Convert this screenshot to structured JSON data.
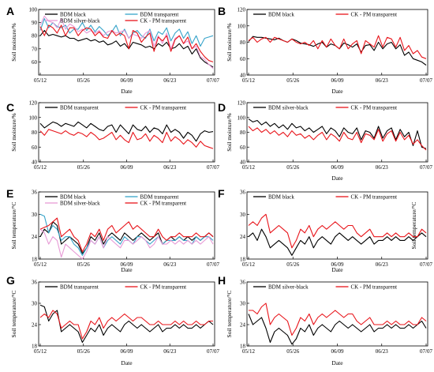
{
  "colors": {
    "bdm_black": "#000000",
    "ck_pm_transparent": "#e8141a",
    "bdm_transparent": "#36a3c9",
    "bdm_silver_black": "#e79ad6",
    "axis": "#000000"
  },
  "chart_data": [
    {
      "panel": "A",
      "type": "line",
      "xlabel": "Date",
      "ylabel": "Soil moisture/%",
      "ylim": [
        50,
        100
      ],
      "yticks": [
        60,
        70,
        80,
        90,
        100
      ],
      "xticks": [
        "05/12",
        "05/26",
        "06/09",
        "06/23",
        "07/07"
      ],
      "legend": "top",
      "ylabel_anchor": "left",
      "legend_cols": 2,
      "series": [
        {
          "name": "BDM black",
          "color": "#000000",
          "values": [
            80,
            84,
            80,
            81,
            80,
            79,
            80,
            78,
            78,
            76,
            77,
            78,
            76,
            77,
            75,
            76,
            73,
            74,
            76,
            72,
            74,
            70,
            75,
            74,
            73,
            71,
            72,
            70,
            74,
            72,
            75,
            70,
            71,
            74,
            70,
            72,
            66,
            70,
            63,
            60,
            58,
            56
          ]
        },
        {
          "name": "BDM transparent",
          "color": "#36a3c9",
          "values": [
            84,
            93,
            86,
            90,
            87,
            86,
            88,
            82,
            85,
            85,
            90,
            84,
            88,
            83,
            87,
            84,
            80,
            83,
            88,
            80,
            85,
            78,
            82,
            84,
            80,
            78,
            85,
            76,
            83,
            81,
            86,
            76,
            82,
            85,
            78,
            83,
            74,
            80,
            72,
            78,
            79,
            80
          ]
        },
        {
          "name": "BDM silver-black",
          "color": "#e79ad6",
          "values": [
            88,
            95,
            91,
            90,
            86,
            93,
            85,
            89,
            87,
            83,
            85,
            82,
            84,
            82,
            84,
            80,
            83,
            84,
            82,
            83,
            84,
            78,
            81,
            80,
            78,
            82,
            84,
            72,
            80,
            74,
            82,
            70,
            78,
            80,
            74,
            76,
            70,
            72,
            64,
            62,
            58,
            55
          ]
        },
        {
          "name": "CK - PM transparent",
          "color": "#e8141a",
          "values": [
            87,
            80,
            88,
            86,
            82,
            88,
            80,
            86,
            86,
            80,
            84,
            86,
            85,
            80,
            83,
            79,
            78,
            84,
            80,
            82,
            80,
            70,
            84,
            82,
            75,
            79,
            82,
            68,
            79,
            76,
            80,
            68,
            77,
            80,
            74,
            79,
            70,
            74,
            68,
            64,
            61,
            60
          ]
        }
      ]
    },
    {
      "panel": "B",
      "type": "line",
      "xlabel": "Date",
      "ylabel": "Soil moisture/%",
      "ylim": [
        40,
        120
      ],
      "yticks": [
        40,
        60,
        80,
        100,
        120
      ],
      "xticks": [
        "05/12",
        "05/26",
        "06/09",
        "06/23",
        "07/07"
      ],
      "legend": "top",
      "ylabel_anchor": "left",
      "legend_cols": 2,
      "series": [
        {
          "name": "BDM black",
          "color": "#000000",
          "values": [
            81,
            87,
            86,
            86,
            85,
            84,
            83,
            85,
            82,
            80,
            84,
            82,
            79,
            78,
            77,
            75,
            78,
            80,
            74,
            78,
            76,
            72,
            79,
            77,
            74,
            78,
            68,
            76,
            77,
            70,
            80,
            72,
            78,
            80,
            72,
            77,
            64,
            68,
            60,
            58,
            56,
            52
          ]
        },
        {
          "name": "CK - PM transparent",
          "color": "#e8141a",
          "values": [
            82,
            86,
            80,
            84,
            86,
            80,
            86,
            84,
            82,
            80,
            84,
            80,
            78,
            80,
            76,
            82,
            72,
            82,
            74,
            84,
            76,
            72,
            84,
            72,
            78,
            82,
            66,
            82,
            78,
            74,
            88,
            74,
            86,
            84,
            74,
            86,
            70,
            76,
            66,
            70,
            62,
            60
          ]
        }
      ]
    },
    {
      "panel": "C",
      "type": "line",
      "xlabel": "",
      "ylabel": "Soil moisture/%",
      "ylim": [
        40,
        120
      ],
      "yticks": [
        40,
        60,
        80,
        100,
        120
      ],
      "xticks": [
        "05/12",
        "05/26",
        "06/09",
        "06/23",
        "07/07"
      ],
      "legend": "top",
      "ylabel_anchor": "left",
      "legend_cols": 2,
      "series": [
        {
          "name": "BDM transparent",
          "color": "#000000",
          "values": [
            92,
            86,
            90,
            94,
            92,
            88,
            92,
            90,
            88,
            94,
            90,
            86,
            92,
            88,
            84,
            82,
            88,
            90,
            80,
            90,
            84,
            78,
            90,
            84,
            82,
            88,
            80,
            86,
            84,
            78,
            90,
            80,
            84,
            80,
            72,
            80,
            76,
            68,
            78,
            82,
            80,
            81
          ]
        },
        {
          "name": "CK - PM transparent",
          "color": "#e8141a",
          "values": [
            82,
            76,
            84,
            82,
            80,
            78,
            82,
            78,
            76,
            80,
            78,
            74,
            80,
            76,
            70,
            72,
            76,
            80,
            70,
            76,
            70,
            66,
            80,
            70,
            72,
            78,
            68,
            76,
            72,
            66,
            80,
            68,
            74,
            70,
            64,
            70,
            66,
            60,
            68,
            62,
            60,
            58
          ]
        }
      ]
    },
    {
      "panel": "D",
      "type": "line",
      "xlabel": "Date",
      "ylabel": "Soil moisture/%",
      "ylim": [
        40,
        120
      ],
      "yticks": [
        40,
        60,
        80,
        100,
        120
      ],
      "xticks": [
        "05/12",
        "05/26",
        "06/09",
        "06/23",
        "07/07"
      ],
      "legend": "top",
      "ylabel_anchor": "left",
      "legend_cols": 2,
      "series": [
        {
          "name": "BDM silver-black",
          "color": "#000000",
          "values": [
            98,
            94,
            96,
            90,
            94,
            88,
            92,
            86,
            90,
            84,
            92,
            86,
            88,
            82,
            86,
            80,
            84,
            88,
            78,
            86,
            82,
            74,
            86,
            80,
            78,
            86,
            70,
            82,
            80,
            72,
            88,
            72,
            82,
            86,
            70,
            84,
            74,
            80,
            62,
            82,
            60,
            58
          ]
        },
        {
          "name": "CK - PM transparent",
          "color": "#e8141a",
          "values": [
            88,
            82,
            86,
            80,
            84,
            78,
            82,
            76,
            80,
            74,
            82,
            76,
            78,
            72,
            76,
            70,
            76,
            80,
            70,
            78,
            74,
            68,
            80,
            72,
            70,
            80,
            66,
            78,
            76,
            70,
            84,
            68,
            78,
            82,
            68,
            80,
            70,
            76,
            64,
            70,
            62,
            56
          ]
        }
      ]
    },
    {
      "panel": "E",
      "type": "line",
      "xlabel": "Date",
      "ylabel": "Soil temperature/°C",
      "ylim": [
        18,
        36
      ],
      "yticks": [
        18,
        24,
        30,
        36
      ],
      "xticks": [
        "05/12",
        "05/26",
        "06/09",
        "06/23",
        "07/07"
      ],
      "legend": "top",
      "ylabel_anchor": "left",
      "legend_cols": 2,
      "series": [
        {
          "name": "BDM black",
          "color": "#000000",
          "values": [
            24,
            26,
            25,
            28,
            27,
            22,
            23,
            24,
            23,
            22,
            19.5,
            21,
            24,
            23,
            25,
            22,
            24,
            25,
            24,
            23,
            25,
            24,
            23,
            24,
            25,
            24,
            23,
            24,
            25,
            22,
            23,
            24,
            23,
            24,
            23,
            24,
            23,
            24,
            23,
            24,
            25,
            24
          ]
        },
        {
          "name": "BDM transparent",
          "color": "#36a3c9",
          "values": [
            30,
            29.5,
            25,
            27,
            26,
            23,
            24,
            24,
            22,
            21,
            19,
            21,
            23,
            22,
            24,
            21,
            23,
            24,
            23,
            22,
            24,
            23,
            22,
            24,
            24,
            23,
            22,
            23,
            24,
            22,
            23,
            23,
            23,
            24,
            23,
            23,
            22,
            24,
            23,
            24,
            24,
            23
          ]
        },
        {
          "name": "BDM silver-black",
          "color": "#e79ad6",
          "values": [
            26,
            25,
            22,
            24,
            23,
            18.5,
            22,
            21,
            20,
            19,
            18,
            20,
            23,
            22,
            24,
            21,
            24,
            23,
            22,
            21,
            23,
            23,
            22,
            23,
            24,
            23,
            21,
            22,
            24,
            22,
            22,
            23,
            22,
            23,
            22,
            23,
            22,
            23,
            22,
            23,
            24,
            22
          ]
        },
        {
          "name": "CK - PM transparent",
          "color": "#e8141a",
          "values": [
            26,
            26.5,
            27,
            28,
            29,
            24,
            25,
            26,
            24,
            23,
            20,
            22,
            25,
            24,
            26,
            23,
            26,
            27,
            25,
            26,
            27,
            28,
            26,
            27,
            26,
            25,
            24,
            24,
            26,
            24,
            23,
            24,
            24,
            25,
            24,
            24,
            24,
            25,
            24,
            24,
            25,
            24
          ]
        }
      ]
    },
    {
      "panel": "F",
      "type": "line",
      "xlabel": "Date",
      "ylabel": "Soil temperature/°C",
      "ylim": [
        18,
        36
      ],
      "yticks": [
        18,
        24,
        30,
        36
      ],
      "xticks": [
        "05/12",
        "05/26",
        "06/09",
        "06/23",
        "07/07"
      ],
      "legend": "top",
      "ylabel_anchor": "right",
      "legend_cols": 2,
      "series": [
        {
          "name": "BDM black",
          "color": "#000000",
          "values": [
            24,
            25,
            23,
            26,
            24,
            21,
            22,
            23,
            22,
            21,
            19,
            21,
            23,
            22,
            24,
            21,
            23,
            24,
            23,
            22,
            24,
            25,
            24,
            23,
            24,
            23,
            22,
            23,
            24,
            22,
            23,
            23,
            24,
            23,
            24,
            23,
            23,
            24,
            23,
            24,
            25,
            24
          ]
        },
        {
          "name": "CK - PM transparent",
          "color": "#e8141a",
          "values": [
            27,
            28,
            27,
            29,
            30,
            25,
            26,
            27,
            26,
            25,
            21,
            23,
            26,
            25,
            27,
            24,
            26,
            27,
            26,
            27,
            28,
            27,
            26,
            27,
            27,
            25,
            24,
            25,
            26,
            24,
            24,
            24,
            25,
            24,
            25,
            24,
            24,
            25,
            24,
            24,
            26,
            25
          ]
        }
      ]
    },
    {
      "panel": "G",
      "type": "line",
      "xlabel": "Date",
      "ylabel": "Soil temperature/°C",
      "ylim": [
        18,
        36
      ],
      "yticks": [
        18,
        24,
        30,
        36
      ],
      "xticks": [
        "05/12",
        "05/26",
        "06/09",
        "06/23",
        "07/07"
      ],
      "legend": "top",
      "ylabel_anchor": "left",
      "legend_cols": 2,
      "series": [
        {
          "name": "BDM transparent",
          "color": "#000000",
          "values": [
            29.5,
            29,
            25,
            27,
            28,
            22,
            23,
            24,
            23,
            22,
            19,
            21,
            23,
            22,
            24,
            21,
            23,
            24,
            23,
            22,
            24,
            25,
            24,
            23,
            24,
            23,
            22,
            23,
            24,
            22,
            23,
            23,
            24,
            23,
            24,
            23,
            23,
            24,
            23,
            24,
            25,
            24
          ]
        },
        {
          "name": "CK - PM transparent",
          "color": "#e8141a",
          "values": [
            26,
            27,
            26,
            28,
            27,
            23,
            24,
            25,
            24,
            24,
            20,
            22,
            25,
            24,
            26,
            23,
            25,
            26,
            25,
            26,
            27,
            26,
            25,
            26,
            26,
            25,
            24,
            24,
            25,
            24,
            24,
            24,
            25,
            24,
            25,
            24,
            24,
            25,
            24,
            24,
            25,
            25
          ]
        }
      ]
    },
    {
      "panel": "H",
      "type": "line",
      "xlabel": "Date",
      "ylabel": "Soil temperature/°C",
      "ylim": [
        18,
        36
      ],
      "yticks": [
        18,
        24,
        30,
        36
      ],
      "xticks": [
        "05/12",
        "05/26",
        "06/09",
        "06/23",
        "07/07"
      ],
      "legend": "top",
      "ylabel_anchor": "left",
      "legend_cols": 2,
      "series": [
        {
          "name": "BDM silver-black",
          "color": "#000000",
          "values": [
            27,
            24,
            25,
            26,
            23,
            19,
            22,
            23,
            22,
            21,
            18.5,
            20,
            23,
            22,
            24,
            21,
            23,
            24,
            23,
            22,
            24,
            25,
            24,
            23,
            24,
            23,
            22,
            23,
            24,
            22,
            23,
            23,
            24,
            23,
            24,
            23,
            23,
            24,
            23,
            24,
            25,
            23
          ]
        },
        {
          "name": "CK - PM transparent",
          "color": "#e8141a",
          "values": [
            28,
            28,
            27,
            29,
            30,
            24,
            26,
            27,
            26,
            25,
            21,
            23,
            26,
            25,
            27,
            24,
            26,
            27,
            26,
            27,
            28,
            27,
            26,
            27,
            27,
            25,
            24,
            25,
            26,
            24,
            24,
            24,
            25,
            24,
            25,
            24,
            24,
            25,
            24,
            24,
            26,
            25
          ]
        }
      ]
    }
  ]
}
